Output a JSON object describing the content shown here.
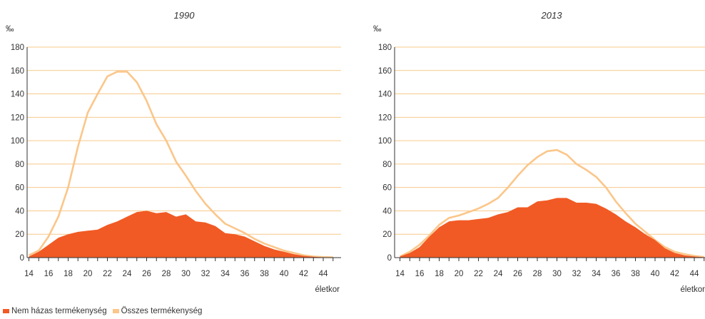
{
  "colors": {
    "nonmarital": "#f15a24",
    "total": "#fbc68a",
    "grid": "#f7c98b",
    "axis": "#333333"
  },
  "legend": {
    "items": [
      {
        "label": "Nem házas termékenység",
        "color": "#f15a24"
      },
      {
        "label": "Összes termékenység",
        "color": "#fbc68a"
      }
    ]
  },
  "chart_data": [
    {
      "type": "area",
      "title": "1990",
      "ylabel": "‰",
      "xlabel": "életkor",
      "ylim": [
        0,
        180
      ],
      "yticks": [
        0,
        20,
        40,
        60,
        80,
        100,
        120,
        140,
        160,
        180
      ],
      "xtick_labels": [
        14,
        16,
        18,
        20,
        22,
        24,
        26,
        28,
        30,
        32,
        34,
        36,
        38,
        40,
        42,
        44
      ],
      "grid": true,
      "legend_position": "bottom-left",
      "x": [
        14,
        15,
        16,
        17,
        18,
        19,
        20,
        21,
        22,
        23,
        24,
        25,
        26,
        27,
        28,
        29,
        30,
        31,
        32,
        33,
        34,
        35,
        36,
        37,
        38,
        39,
        40,
        41,
        42,
        43,
        44,
        45
      ],
      "series": [
        {
          "name": "Összes termékenység",
          "kind": "line",
          "color": "#fbc68a",
          "values": [
            2,
            6,
            18,
            35,
            60,
            95,
            124,
            140,
            155,
            159,
            159,
            150,
            134,
            114,
            100,
            82,
            70,
            57,
            46,
            37,
            29,
            25,
            21,
            16,
            12,
            9,
            6,
            4,
            2,
            1,
            0.5,
            0.3
          ]
        },
        {
          "name": "Nem házas termékenység",
          "kind": "area",
          "color": "#f15a24",
          "values": [
            1,
            5,
            11,
            17,
            20,
            22,
            23,
            24,
            28,
            31,
            35,
            39,
            40,
            38,
            39,
            35,
            37,
            31,
            30,
            27,
            21,
            20,
            18,
            14,
            10,
            7,
            5,
            3,
            1.5,
            0.8,
            0.3,
            0.1
          ]
        }
      ]
    },
    {
      "type": "area",
      "title": "2013",
      "ylabel": "‰",
      "xlabel": "életkor",
      "ylim": [
        0,
        180
      ],
      "yticks": [
        0,
        20,
        40,
        60,
        80,
        100,
        120,
        140,
        160,
        180
      ],
      "xtick_labels": [
        14,
        16,
        18,
        20,
        22,
        24,
        26,
        28,
        30,
        32,
        34,
        36,
        38,
        40,
        42,
        44
      ],
      "grid": true,
      "legend_position": "bottom-left",
      "x": [
        14,
        15,
        16,
        17,
        18,
        19,
        20,
        21,
        22,
        23,
        24,
        25,
        26,
        27,
        28,
        29,
        30,
        31,
        32,
        33,
        34,
        35,
        36,
        37,
        38,
        39,
        40,
        41,
        42,
        43,
        44,
        45
      ],
      "series": [
        {
          "name": "Összes termékenység",
          "kind": "line",
          "color": "#fbc68a",
          "values": [
            1,
            5,
            11,
            19,
            28,
            34,
            36,
            39,
            42,
            46,
            51,
            60,
            70,
            79,
            86,
            91,
            92,
            88,
            80,
            75,
            69,
            60,
            48,
            38,
            29,
            22,
            15,
            9,
            5,
            3,
            1.5,
            0.5
          ]
        },
        {
          "name": "Nem házas termékenység",
          "kind": "area",
          "color": "#f15a24",
          "values": [
            1,
            4,
            9,
            18,
            26,
            31,
            32,
            32,
            33,
            34,
            37,
            39,
            43,
            43,
            48,
            49,
            51,
            51,
            47,
            47,
            46,
            42,
            37,
            31,
            26,
            20,
            15,
            8,
            4,
            2,
            1,
            0.3
          ]
        }
      ]
    }
  ]
}
